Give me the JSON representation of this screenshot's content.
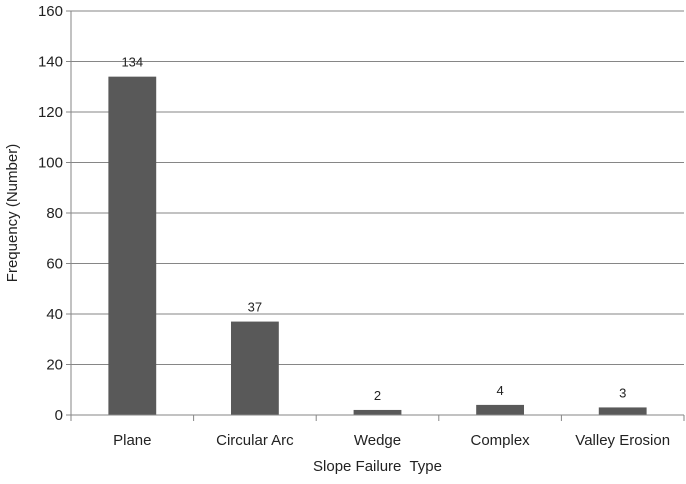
{
  "chart_data": {
    "type": "bar",
    "title": "",
    "xlabel": "Slope Failure  Type",
    "ylabel": "Frequency (Number)",
    "categories": [
      "Plane",
      "Circular Arc",
      "Wedge",
      "Complex",
      "Valley Erosion"
    ],
    "values": [
      134,
      37,
      2,
      4,
      3
    ],
    "data_labels": [
      "134",
      "37",
      "2",
      "4",
      "3"
    ],
    "ylim": [
      0,
      160
    ],
    "yticks": [
      0,
      20,
      40,
      60,
      80,
      100,
      120,
      140,
      160
    ],
    "grid": true,
    "legend": "none",
    "bar_color": "#595959",
    "grid_color": "#868686"
  }
}
